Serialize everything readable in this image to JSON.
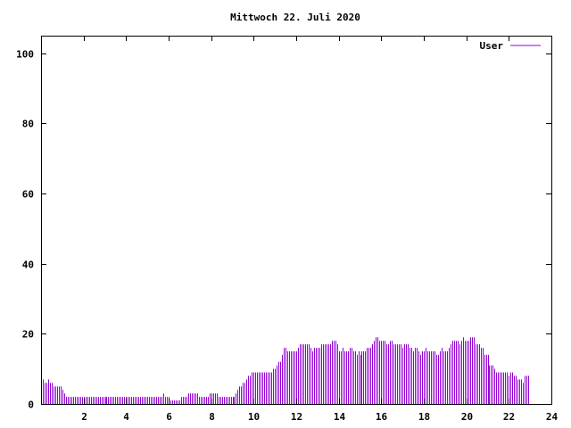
{
  "chart_data": {
    "type": "bar",
    "title": "Mittwoch 22. Juli 2020",
    "xlabel": "",
    "ylabel": "",
    "xlim": [
      0,
      24
    ],
    "ylim": [
      0,
      105
    ],
    "x_ticks": [
      2,
      4,
      6,
      8,
      10,
      12,
      14,
      16,
      18,
      20,
      22,
      24
    ],
    "y_ticks": [
      0,
      20,
      40,
      60,
      80,
      100
    ],
    "grid": false,
    "legend_position": "top-right",
    "series": [
      {
        "name": "User",
        "color": "#9400d3",
        "interval_minutes": 5,
        "values": [
          10,
          7,
          6,
          6,
          7,
          6,
          6,
          5,
          5,
          5,
          5,
          5,
          4,
          3,
          2,
          2,
          2,
          2,
          2,
          2,
          2,
          2,
          2,
          2,
          2,
          2,
          2,
          2,
          2,
          2,
          2,
          2,
          2,
          2,
          2,
          2,
          2,
          2,
          2,
          2,
          2,
          2,
          2,
          2,
          2,
          2,
          2,
          2,
          2,
          2,
          2,
          2,
          2,
          2,
          2,
          2,
          2,
          2,
          2,
          2,
          2,
          2,
          2,
          2,
          2,
          2,
          2,
          2,
          2,
          3,
          2,
          2,
          2,
          1,
          1,
          1,
          1,
          1,
          1,
          2,
          2,
          2,
          2,
          3,
          3,
          3,
          3,
          3,
          3,
          2,
          2,
          2,
          2,
          2,
          2,
          3,
          3,
          3,
          3,
          3,
          2,
          2,
          2,
          2,
          2,
          2,
          2,
          2,
          2,
          2,
          3,
          4,
          5,
          5,
          6,
          6,
          7,
          8,
          8,
          9,
          9,
          9,
          9,
          9,
          9,
          9,
          9,
          9,
          9,
          9,
          9,
          10,
          10,
          11,
          12,
          12,
          14,
          16,
          16,
          15,
          15,
          15,
          15,
          15,
          15,
          16,
          17,
          17,
          17,
          17,
          17,
          17,
          16,
          15,
          16,
          16,
          16,
          16,
          17,
          17,
          17,
          17,
          17,
          17,
          18,
          18,
          18,
          17,
          15,
          15,
          16,
          15,
          15,
          15,
          16,
          16,
          15,
          15,
          14,
          15,
          14,
          15,
          15,
          15,
          16,
          16,
          16,
          17,
          18,
          19,
          19,
          18,
          18,
          18,
          18,
          17,
          17,
          18,
          18,
          17,
          17,
          17,
          17,
          17,
          16,
          17,
          17,
          17,
          16,
          16,
          15,
          16,
          16,
          15,
          14,
          15,
          15,
          16,
          15,
          15,
          15,
          15,
          15,
          14,
          14,
          15,
          16,
          15,
          15,
          15,
          16,
          17,
          18,
          18,
          18,
          18,
          17,
          18,
          19,
          18,
          18,
          18,
          19,
          19,
          19,
          17,
          17,
          17,
          16,
          16,
          14,
          14,
          14,
          11,
          11,
          11,
          10,
          9,
          9,
          9,
          9,
          9,
          9,
          9,
          8,
          9,
          9,
          8,
          8,
          7,
          7,
          7,
          6,
          8,
          8,
          8
        ]
      }
    ]
  }
}
